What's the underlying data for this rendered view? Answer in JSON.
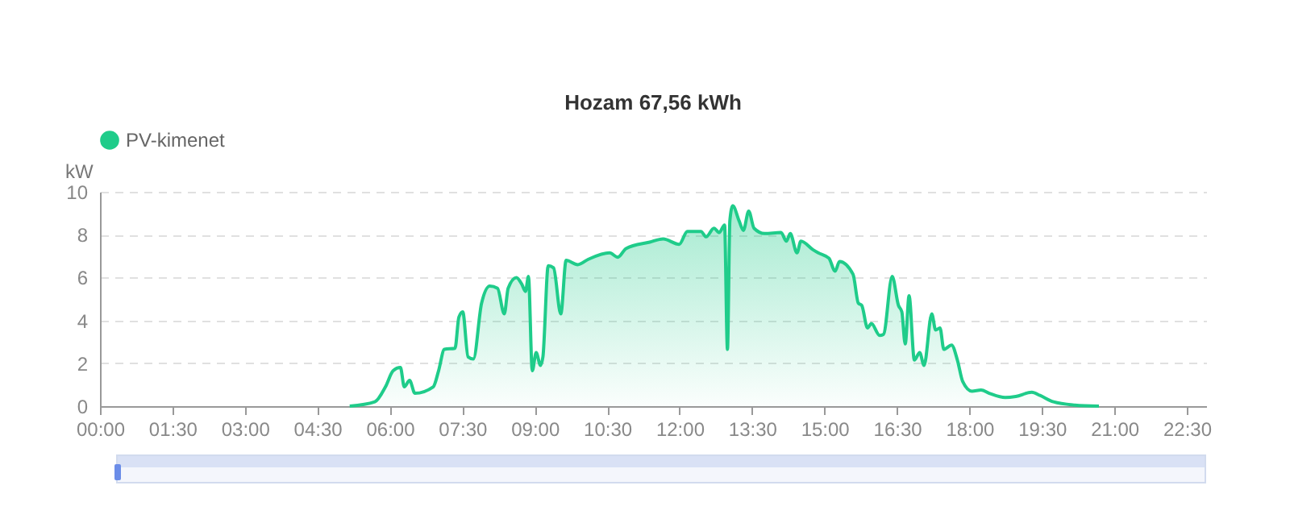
{
  "chart_data": {
    "type": "area",
    "title": "Hozam 67,56 kWh",
    "ylabel": "kW",
    "legend": "top",
    "xlim": [
      0,
      22.9
    ],
    "ylim": [
      0,
      10
    ],
    "yticks": [
      0,
      2,
      4,
      6,
      8,
      10
    ],
    "xticks": [
      {
        "value": 0,
        "label": "00:00"
      },
      {
        "value": 1.5,
        "label": "01:30"
      },
      {
        "value": 3,
        "label": "03:00"
      },
      {
        "value": 4.5,
        "label": "04:30"
      },
      {
        "value": 6,
        "label": "06:00"
      },
      {
        "value": 7.5,
        "label": "07:30"
      },
      {
        "value": 9,
        "label": "09:00"
      },
      {
        "value": 10.5,
        "label": "10:30"
      },
      {
        "value": 12,
        "label": "12:00"
      },
      {
        "value": 13.5,
        "label": "13:30"
      },
      {
        "value": 15,
        "label": "15:00"
      },
      {
        "value": 16.5,
        "label": "16:30"
      },
      {
        "value": 18,
        "label": "18:00"
      },
      {
        "value": 19.5,
        "label": "19:30"
      },
      {
        "value": 21,
        "label": "21:00"
      },
      {
        "value": 22.5,
        "label": "22:30"
      }
    ],
    "grid": "y",
    "marker": "none",
    "line_style": "solid",
    "x": [
      5.17,
      5.69,
      5.91,
      6.07,
      6.22,
      6.3,
      6.41,
      6.52,
      6.9,
      7.01,
      7.13,
      7.35,
      7.43,
      7.51,
      7.62,
      7.73,
      7.9,
      8.07,
      8.23,
      8.37,
      8.45,
      8.62,
      8.73,
      8.81,
      8.87,
      8.95,
      9.03,
      9.12,
      9.17,
      9.28,
      9.39,
      9.54,
      9.65,
      9.89,
      10.11,
      10.55,
      10.72,
      10.89,
      11.38,
      11.66,
      11.99,
      12.16,
      12.44,
      12.55,
      12.71,
      12.82,
      12.93,
      12.99,
      13.04,
      13.1,
      13.23,
      13.32,
      13.43,
      13.54,
      13.76,
      14.1,
      14.21,
      14.29,
      14.43,
      14.51,
      14.76,
      14.87,
      15.09,
      15.22,
      15.31,
      15.59,
      15.7,
      15.77,
      15.89,
      15.97,
      16.14,
      16.22,
      16.4,
      16.53,
      16.6,
      16.67,
      16.75,
      16.86,
      16.97,
      17.06,
      17.22,
      17.3,
      17.39,
      17.47,
      17.63,
      17.75,
      17.86,
      18.05,
      18.24,
      18.41,
      18.74,
      18.96,
      19.29,
      19.46,
      19.74,
      20.18,
      20.68
    ],
    "series": [
      {
        "name": "PV-kimenet",
        "color": "#1fcc8a",
        "values": [
          0,
          0.2,
          0.9,
          1.65,
          1.8,
          0.9,
          1.2,
          0.6,
          0.9,
          1.65,
          2.65,
          2.7,
          4.15,
          4.4,
          2.3,
          2.2,
          4.8,
          5.6,
          5.5,
          4.3,
          5.5,
          6.0,
          5.7,
          5.35,
          6.05,
          1.65,
          2.5,
          1.9,
          2.3,
          6.55,
          6.45,
          4.3,
          6.8,
          6.6,
          6.85,
          7.15,
          6.95,
          7.35,
          7.65,
          7.8,
          7.55,
          8.15,
          8.15,
          7.9,
          8.3,
          8.1,
          8.45,
          2.65,
          8.65,
          9.35,
          8.65,
          8.2,
          9.1,
          8.3,
          8.05,
          8.1,
          7.7,
          8.05,
          7.15,
          7.7,
          7.3,
          7.15,
          6.9,
          6.3,
          6.75,
          6.15,
          4.8,
          4.7,
          3.65,
          3.85,
          3.3,
          3.35,
          6.05,
          4.7,
          4.4,
          2.9,
          5.15,
          2.15,
          2.5,
          1.9,
          4.3,
          3.55,
          3.65,
          2.65,
          2.85,
          2.15,
          1.15,
          0.7,
          0.75,
          0.6,
          0.4,
          0.45,
          0.65,
          0.5,
          0.2,
          0.05,
          0
        ]
      }
    ]
  }
}
